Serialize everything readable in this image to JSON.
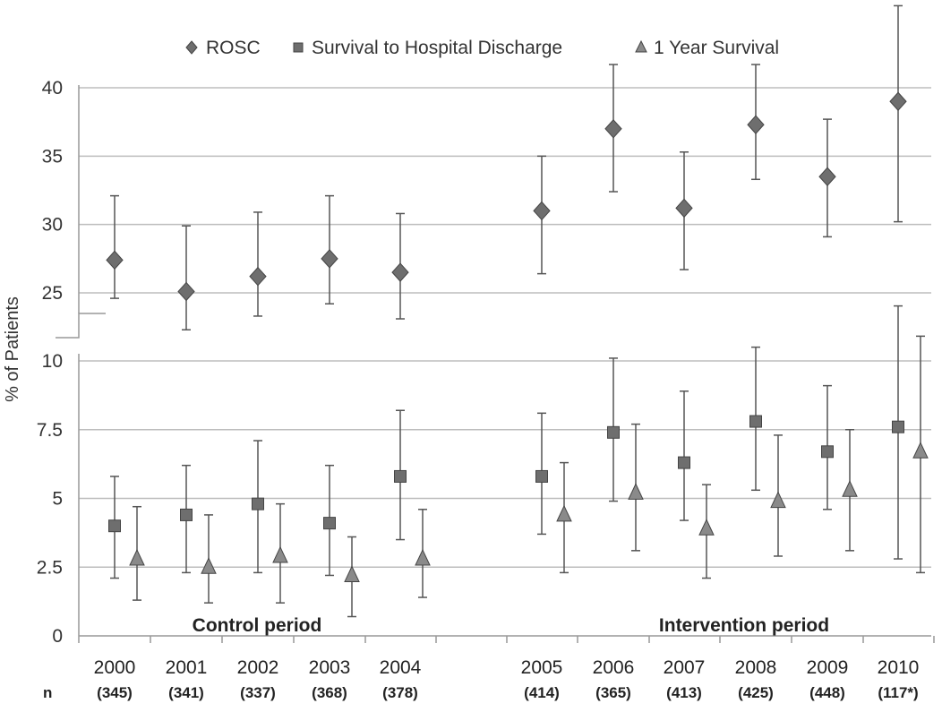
{
  "chart_data": {
    "type": "scatter",
    "ylabel": "% of Patients",
    "n_label": "n",
    "periods": [
      "Control period",
      "Intervention period"
    ],
    "categories": [
      "2000",
      "2001",
      "2002",
      "2003",
      "2004",
      "2005",
      "2006",
      "2007",
      "2008",
      "2009",
      "2010"
    ],
    "category_period": [
      "Control period",
      "Control period",
      "Control period",
      "Control period",
      "Control period",
      "Intervention period",
      "Intervention period",
      "Intervention period",
      "Intervention period",
      "Intervention period",
      "Intervention period"
    ],
    "n_values": [
      "(345)",
      "(341)",
      "(337)",
      "(368)",
      "(378)",
      "(414)",
      "(365)",
      "(413)",
      "(425)",
      "(448)",
      "(117*)"
    ],
    "y_axis_break": true,
    "y_ticks_lower": [
      "0",
      "2.5",
      "5",
      "7.5",
      "10"
    ],
    "y_ticks_upper": [
      "25",
      "30",
      "35",
      "40"
    ],
    "ylim_lower": [
      0,
      10
    ],
    "ylim_upper": [
      23,
      40
    ],
    "grid": true,
    "legend_position": "top",
    "series": [
      {
        "name": "ROSC",
        "marker": "diamond",
        "panel": "upper",
        "values": [
          27.4,
          25.1,
          26.2,
          27.5,
          26.5,
          31.0,
          37.0,
          31.2,
          37.3,
          33.5,
          39.0
        ],
        "lower": [
          24.6,
          22.3,
          23.3,
          24.2,
          23.1,
          26.4,
          32.4,
          26.7,
          33.3,
          29.1,
          30.2
        ],
        "upper": [
          32.1,
          29.9,
          30.9,
          32.1,
          30.8,
          35.0,
          41.7,
          35.3,
          41.7,
          37.7,
          46.0
        ]
      },
      {
        "name": "Survival to Hospital Discharge",
        "marker": "square",
        "panel": "lower",
        "values": [
          4.0,
          4.4,
          4.8,
          4.1,
          5.8,
          5.8,
          7.4,
          6.3,
          7.8,
          6.7,
          7.6
        ],
        "lower": [
          2.1,
          2.3,
          2.3,
          2.2,
          3.5,
          3.7,
          4.9,
          4.2,
          5.3,
          4.6,
          2.8
        ],
        "upper": [
          5.8,
          6.2,
          7.1,
          6.2,
          8.2,
          8.1,
          10.1,
          8.9,
          10.5,
          9.1,
          12.0
        ]
      },
      {
        "name": "1 Year Survival",
        "marker": "triangle",
        "panel": "lower",
        "values": [
          2.8,
          2.5,
          2.9,
          2.2,
          2.8,
          4.4,
          5.2,
          3.9,
          4.9,
          5.3,
          6.7
        ],
        "lower": [
          1.3,
          1.2,
          1.2,
          0.7,
          1.4,
          2.3,
          3.1,
          2.1,
          2.9,
          3.1,
          2.3
        ],
        "upper": [
          4.7,
          4.4,
          4.8,
          3.6,
          4.6,
          6.3,
          7.7,
          5.5,
          7.3,
          7.5,
          10.9
        ]
      }
    ]
  },
  "colors": {
    "marker_fill": "#6e6e6e",
    "marker_stroke": "#444444",
    "triangle_fill": "#8a8a8a",
    "error_bar": "#555555",
    "grid": "#bdbdbd",
    "axis": "#999999"
  }
}
